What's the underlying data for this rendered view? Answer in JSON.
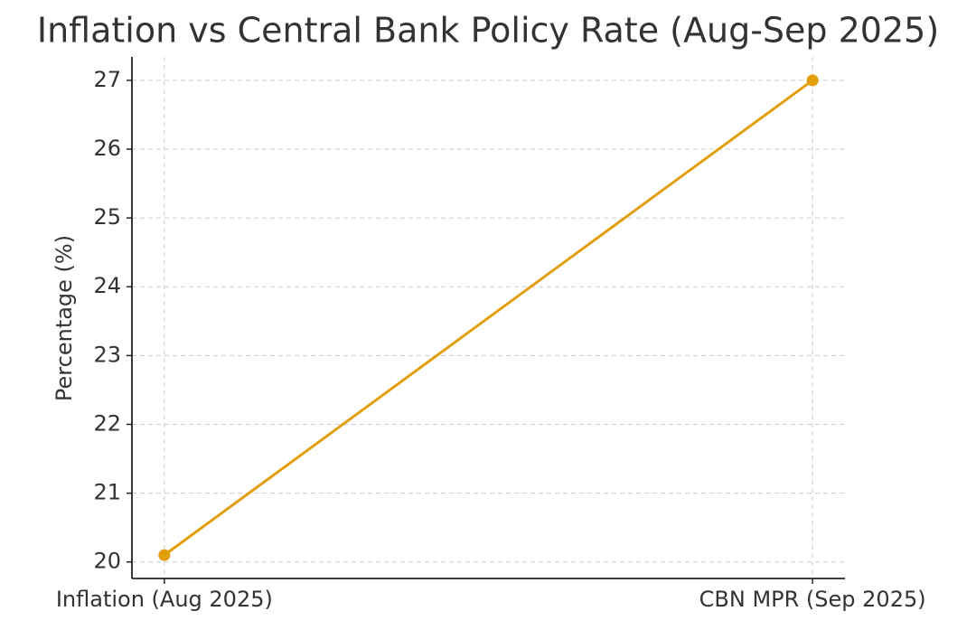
{
  "chart_data": {
    "type": "line",
    "title": "Inflation vs Central Bank Policy Rate (Aug-Sep 2025)",
    "y_label": "Percentage (%)",
    "categories": [
      "Inflation (Aug 2025)",
      "CBN MPR (Sep 2025)"
    ],
    "values": [
      20.1,
      27
    ],
    "color": "#e39e0c",
    "ylim": [
      19.76,
      27.34
    ],
    "yticks": [
      20,
      21,
      22,
      23,
      24,
      25,
      26,
      27
    ],
    "grid": true
  }
}
